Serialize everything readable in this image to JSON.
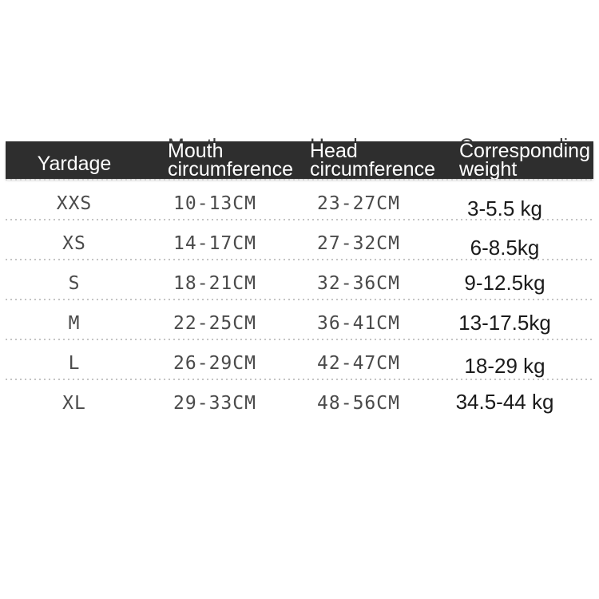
{
  "colors": {
    "background": "#ffffff",
    "header_bar": "#2e2e2e",
    "header_text": "#ffffff",
    "header_ghost_text": "#3f3f3f",
    "measurement_text": "#4b4b4b",
    "weight_text": "#1b1b1b",
    "dotted_separator": "#c4c4c4"
  },
  "table": {
    "header": {
      "yardage": "Yardage",
      "mouth_line1": "Mouth",
      "mouth_line2": "circumference",
      "head_line1": "Head",
      "head_line2": "circumference",
      "weight_line1": "Corresponding",
      "weight_line2": "weight"
    },
    "rows": [
      {
        "size": "XXS",
        "mouth": "10-13CM",
        "head": "23-27CM",
        "weight": "3-5.5 kg"
      },
      {
        "size": "XS",
        "mouth": "14-17CM",
        "head": "27-32CM",
        "weight": "6-8.5kg"
      },
      {
        "size": "S",
        "mouth": "18-21CM",
        "head": "32-36CM",
        "weight": "9-12.5kg"
      },
      {
        "size": "M",
        "mouth": "22-25CM",
        "head": "36-41CM",
        "weight": "13-17.5kg"
      },
      {
        "size": "L",
        "mouth": "26-29CM",
        "head": "42-47CM",
        "weight": "18-29 kg"
      },
      {
        "size": "XL",
        "mouth": "29-33CM",
        "head": "48-56CM",
        "weight": "34.5-44 kg"
      }
    ]
  },
  "chart_data": {
    "type": "table",
    "columns": [
      "Yardage",
      "Mouth circumference",
      "Head circumference",
      "Corresponding weight"
    ],
    "rows": [
      [
        "XXS",
        "10-13CM",
        "23-27CM",
        "3-5.5 kg"
      ],
      [
        "XS",
        "14-17CM",
        "27-32CM",
        "6-8.5kg"
      ],
      [
        "S",
        "18-21CM",
        "32-36CM",
        "9-12.5kg"
      ],
      [
        "M",
        "22-25CM",
        "36-41CM",
        "13-17.5kg"
      ],
      [
        "L",
        "26-29CM",
        "42-47CM",
        "18-29 kg"
      ],
      [
        "XL",
        "29-33CM",
        "48-56CM",
        "34.5-44 kg"
      ]
    ]
  }
}
